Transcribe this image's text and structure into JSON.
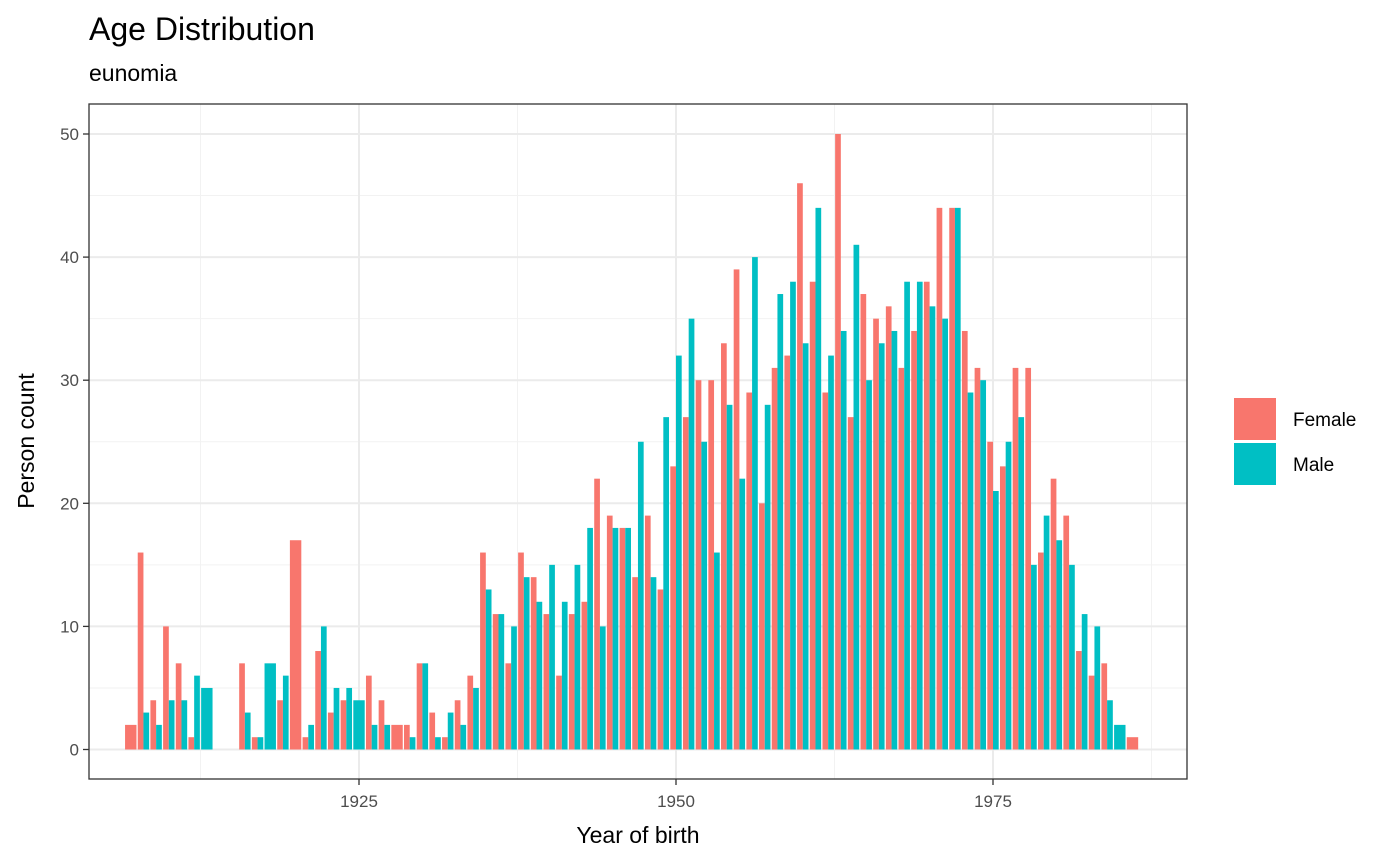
{
  "chart_data": {
    "type": "bar",
    "title": "Age Distribution",
    "subtitle": "eunomia",
    "xlabel": "Year of birth",
    "ylabel": "Person count",
    "xlim": [
      1904,
      1988
    ],
    "ylim": [
      -2.5,
      52.5
    ],
    "x_ticks": [
      1925,
      1950,
      1975
    ],
    "y_ticks": [
      0,
      10,
      20,
      30,
      40,
      50
    ],
    "grid": true,
    "legend_position": "right",
    "series": [
      {
        "name": "Female",
        "color": "#F8766D",
        "points": [
          [
            1908,
            16
          ],
          [
            1909,
            4
          ],
          [
            1910,
            10
          ],
          [
            1911,
            7
          ],
          [
            1912,
            1
          ],
          [
            1916,
            7
          ],
          [
            1917,
            1
          ],
          [
            1919,
            4
          ],
          [
            1921,
            1
          ],
          [
            1922,
            8
          ],
          [
            1923,
            3
          ],
          [
            1924,
            4
          ],
          [
            1926,
            6
          ],
          [
            1927,
            4
          ],
          [
            1929,
            2
          ],
          [
            1930,
            7
          ],
          [
            1931,
            3
          ],
          [
            1932,
            1
          ],
          [
            1933,
            4
          ],
          [
            1934,
            6
          ],
          [
            1935,
            16
          ],
          [
            1936,
            11
          ],
          [
            1937,
            7
          ],
          [
            1938,
            16
          ],
          [
            1939,
            14
          ],
          [
            1940,
            11
          ],
          [
            1941,
            6
          ],
          [
            1942,
            11
          ],
          [
            1943,
            12
          ],
          [
            1944,
            22
          ],
          [
            1945,
            19
          ],
          [
            1946,
            18
          ],
          [
            1947,
            14
          ],
          [
            1948,
            19
          ],
          [
            1949,
            13
          ],
          [
            1950,
            23
          ],
          [
            1951,
            27
          ],
          [
            1952,
            30
          ],
          [
            1953,
            30
          ],
          [
            1954,
            33
          ],
          [
            1955,
            39
          ],
          [
            1956,
            29
          ],
          [
            1957,
            20
          ],
          [
            1958,
            31
          ],
          [
            1959,
            32
          ],
          [
            1960,
            46
          ],
          [
            1961,
            38
          ],
          [
            1962,
            29
          ],
          [
            1963,
            50
          ],
          [
            1964,
            27
          ],
          [
            1965,
            37
          ],
          [
            1966,
            35
          ],
          [
            1967,
            36
          ],
          [
            1968,
            31
          ],
          [
            1969,
            34
          ],
          [
            1970,
            38
          ],
          [
            1971,
            44
          ],
          [
            1972,
            44
          ],
          [
            1973,
            34
          ],
          [
            1974,
            31
          ],
          [
            1975,
            25
          ],
          [
            1976,
            23
          ],
          [
            1977,
            31
          ],
          [
            1978,
            31
          ],
          [
            1979,
            16
          ],
          [
            1980,
            22
          ],
          [
            1981,
            19
          ],
          [
            1982,
            8
          ],
          [
            1983,
            6
          ],
          [
            1984,
            7
          ]
        ]
      },
      {
        "name": "Male",
        "color": "#00BFC4",
        "points": [
          [
            1908,
            3
          ],
          [
            1909,
            2
          ],
          [
            1910,
            4
          ],
          [
            1911,
            4
          ],
          [
            1912,
            6
          ],
          [
            1916,
            3
          ],
          [
            1917,
            1
          ],
          [
            1919,
            6
          ],
          [
            1921,
            2
          ],
          [
            1922,
            10
          ],
          [
            1923,
            5
          ],
          [
            1924,
            5
          ],
          [
            1926,
            2
          ],
          [
            1927,
            2
          ],
          [
            1929,
            1
          ],
          [
            1930,
            7
          ],
          [
            1931,
            1
          ],
          [
            1932,
            3
          ],
          [
            1933,
            2
          ],
          [
            1934,
            5
          ],
          [
            1935,
            13
          ],
          [
            1936,
            11
          ],
          [
            1937,
            10
          ],
          [
            1938,
            14
          ],
          [
            1939,
            12
          ],
          [
            1940,
            15
          ],
          [
            1941,
            12
          ],
          [
            1942,
            15
          ],
          [
            1943,
            18
          ],
          [
            1944,
            10
          ],
          [
            1945,
            18
          ],
          [
            1946,
            18
          ],
          [
            1947,
            25
          ],
          [
            1948,
            14
          ],
          [
            1949,
            27
          ],
          [
            1950,
            32
          ],
          [
            1951,
            35
          ],
          [
            1952,
            25
          ],
          [
            1953,
            16
          ],
          [
            1954,
            28
          ],
          [
            1955,
            22
          ],
          [
            1956,
            40
          ],
          [
            1957,
            28
          ],
          [
            1958,
            37
          ],
          [
            1959,
            38
          ],
          [
            1960,
            33
          ],
          [
            1961,
            44
          ],
          [
            1962,
            32
          ],
          [
            1963,
            34
          ],
          [
            1964,
            41
          ],
          [
            1965,
            30
          ],
          [
            1966,
            33
          ],
          [
            1967,
            34
          ],
          [
            1968,
            38
          ],
          [
            1969,
            38
          ],
          [
            1970,
            36
          ],
          [
            1971,
            35
          ],
          [
            1972,
            44
          ],
          [
            1973,
            29
          ],
          [
            1974,
            30
          ],
          [
            1975,
            21
          ],
          [
            1976,
            25
          ],
          [
            1977,
            27
          ],
          [
            1978,
            15
          ],
          [
            1979,
            19
          ],
          [
            1980,
            17
          ],
          [
            1981,
            15
          ],
          [
            1982,
            11
          ],
          [
            1983,
            10
          ],
          [
            1984,
            4
          ]
        ]
      }
    ],
    "single_points": [
      {
        "series": "Female",
        "x": 1907,
        "y": 2
      },
      {
        "series": "Male",
        "x": 1913,
        "y": 5
      },
      {
        "series": "Male",
        "x": 1918,
        "y": 7
      },
      {
        "series": "Female",
        "x": 1920,
        "y": 17
      },
      {
        "series": "Male",
        "x": 1925,
        "y": 4
      },
      {
        "series": "Female",
        "x": 1928,
        "y": 2
      },
      {
        "series": "Male",
        "x": 1985,
        "y": 2
      },
      {
        "series": "Female",
        "x": 1986,
        "y": 1
      }
    ]
  }
}
